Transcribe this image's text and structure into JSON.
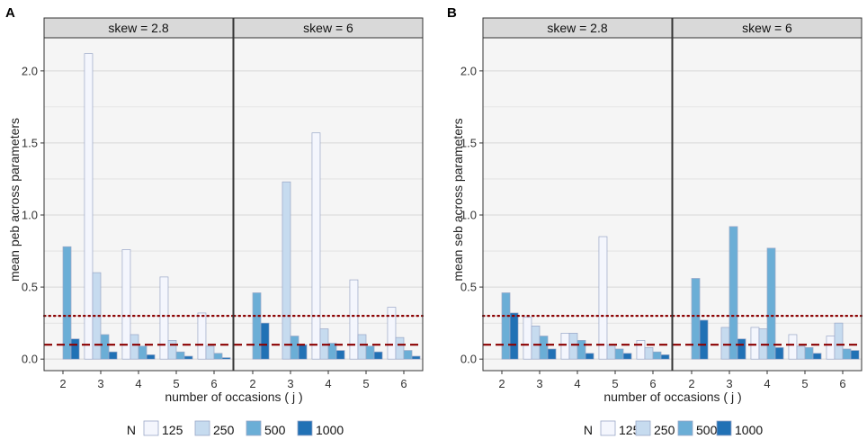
{
  "colors": {
    "n125": "#f4f6fd",
    "n250": "#c6dbef",
    "n500": "#6baed6",
    "n1000": "#2171b5",
    "bar_stroke": "#9aa7c7",
    "panel_bg": "#f5f5f5",
    "strip_bg": "#d9d9d9",
    "grid": "#d6d6d6",
    "ref_line": "#8b0000"
  },
  "chart_data": [
    {
      "type": "bar",
      "panel_label": "A",
      "ylabel": "mean peb across parameters",
      "xlabel": "number of occasions ( j )",
      "ylim": [
        -0.08,
        2.23
      ],
      "yticks": [
        0.0,
        0.5,
        1.0,
        1.5,
        2.0
      ],
      "ytick_labels": [
        "0.0",
        "0.5",
        "1.0",
        "1.5",
        "2.0"
      ],
      "reference_lines": [
        {
          "value": 0.3,
          "style": "dotted"
        },
        {
          "value": 0.1,
          "style": "dashed"
        }
      ],
      "facets": [
        {
          "title": "skew = 2.8",
          "categories": [
            "2",
            "3",
            "4",
            "5",
            "6"
          ],
          "series": [
            {
              "name": "125",
              "values": [
                null,
                2.12,
                0.76,
                0.57,
                0.32
              ]
            },
            {
              "name": "250",
              "values": [
                null,
                0.6,
                0.17,
                0.13,
                0.09
              ]
            },
            {
              "name": "500",
              "values": [
                0.78,
                0.17,
                0.09,
                0.05,
                0.04
              ]
            },
            {
              "name": "1000",
              "values": [
                0.14,
                0.05,
                0.03,
                0.02,
                0.01
              ]
            }
          ]
        },
        {
          "title": "skew = 6",
          "categories": [
            "2",
            "3",
            "4",
            "5",
            "6"
          ],
          "series": [
            {
              "name": "125",
              "values": [
                null,
                null,
                1.57,
                0.55,
                0.36
              ]
            },
            {
              "name": "250",
              "values": [
                null,
                1.23,
                0.21,
                0.17,
                0.15
              ]
            },
            {
              "name": "500",
              "values": [
                0.46,
                0.16,
                0.11,
                0.09,
                0.06
              ]
            },
            {
              "name": "1000",
              "values": [
                0.25,
                0.1,
                0.06,
                0.05,
                0.02
              ]
            }
          ]
        }
      ]
    },
    {
      "type": "bar",
      "panel_label": "B",
      "ylabel": "mean seb across parameters",
      "xlabel": "number of occasions ( j )",
      "ylim": [
        -0.08,
        2.23
      ],
      "yticks": [
        0.0,
        0.5,
        1.0,
        1.5,
        2.0
      ],
      "ytick_labels": [
        "0.0",
        "0.5",
        "1.0",
        "1.5",
        "2.0"
      ],
      "reference_lines": [
        {
          "value": 0.3,
          "style": "dotted"
        },
        {
          "value": 0.1,
          "style": "dashed"
        }
      ],
      "facets": [
        {
          "title": "skew = 2.8",
          "categories": [
            "2",
            "3",
            "4",
            "5",
            "6"
          ],
          "series": [
            {
              "name": "125",
              "values": [
                null,
                0.29,
                0.18,
                0.85,
                0.13
              ]
            },
            {
              "name": "250",
              "values": [
                null,
                0.23,
                0.18,
                0.1,
                0.08
              ]
            },
            {
              "name": "500",
              "values": [
                0.46,
                0.16,
                0.13,
                0.07,
                0.05
              ]
            },
            {
              "name": "1000",
              "values": [
                0.32,
                0.07,
                0.04,
                0.04,
                0.03
              ]
            }
          ]
        },
        {
          "title": "skew = 6",
          "categories": [
            "2",
            "3",
            "4",
            "5",
            "6"
          ],
          "series": [
            {
              "name": "125",
              "values": [
                null,
                null,
                0.22,
                0.17,
                0.16
              ]
            },
            {
              "name": "250",
              "values": [
                null,
                0.22,
                0.21,
                0.09,
                0.25
              ]
            },
            {
              "name": "500",
              "values": [
                0.56,
                0.92,
                0.77,
                0.08,
                0.07
              ]
            },
            {
              "name": "1000",
              "values": [
                0.27,
                0.14,
                0.08,
                0.04,
                0.06
              ]
            }
          ]
        }
      ]
    }
  ],
  "legend": {
    "title": "N",
    "entries": [
      "125",
      "250",
      "500",
      "1000"
    ]
  }
}
